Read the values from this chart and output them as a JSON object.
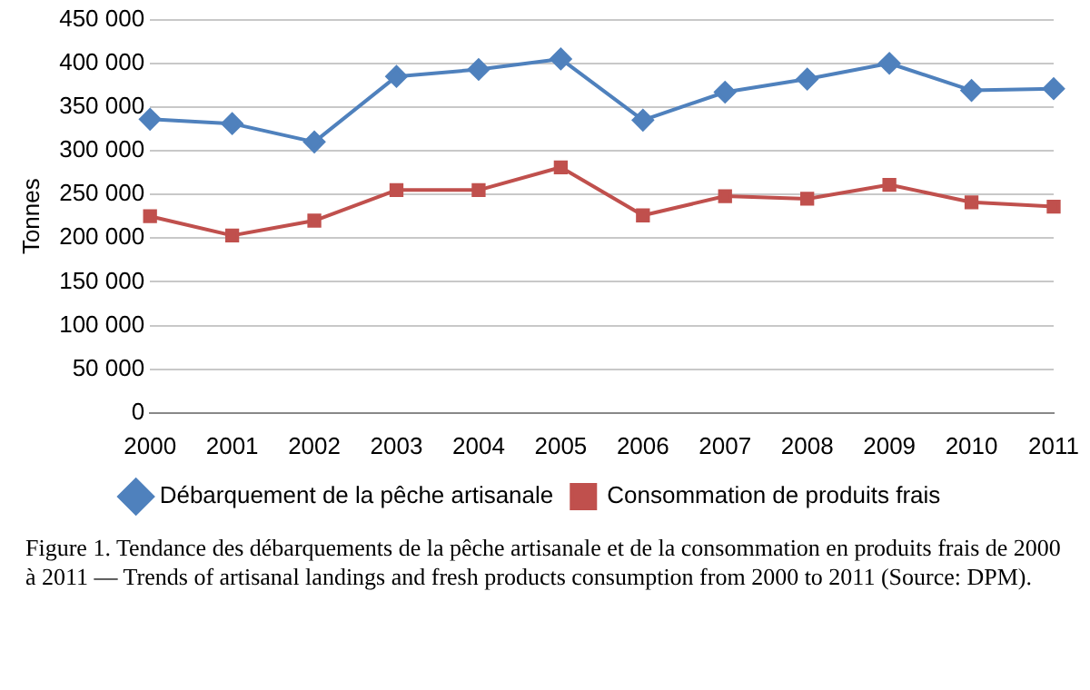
{
  "chart_data": {
    "type": "line",
    "ylabel": "Tonnes",
    "categories": [
      "2000",
      "2001",
      "2002",
      "2003",
      "2004",
      "2005",
      "2006",
      "2007",
      "2008",
      "2009",
      "2010",
      "2011"
    ],
    "series": [
      {
        "name": "Débarquement de la pêche artisanale",
        "color": "#4f81bd",
        "marker": "diamond",
        "values": [
          336000,
          331000,
          310000,
          385000,
          393000,
          405000,
          335000,
          367000,
          382000,
          400000,
          369000,
          371000
        ]
      },
      {
        "name": "Consommation de produits frais",
        "color": "#c0504d",
        "marker": "square",
        "values": [
          225000,
          203000,
          220000,
          255000,
          255000,
          281000,
          226000,
          248000,
          245000,
          261000,
          241000,
          236000
        ]
      }
    ],
    "ylim": [
      0,
      450000
    ],
    "yticks": [
      0,
      {
        "value": 50000,
        "label": "50 000"
      },
      {
        "value": 100000,
        "label": "100 000"
      },
      {
        "value": 150000,
        "label": "150 000"
      },
      {
        "value": 200000,
        "label": "200 000"
      },
      {
        "value": 250000,
        "label": "250 000"
      },
      {
        "value": 300000,
        "label": "300 000"
      },
      {
        "value": 350000,
        "label": "350 000"
      },
      {
        "value": 400000,
        "label": "400 000"
      },
      {
        "value": 450000,
        "label": "450 000"
      }
    ],
    "grid": "y",
    "legend": "bottom",
    "annotations": [
      "Figure 1. Tendance des débarquements de la pêche artisanale et de la consommation en produits frais de 2000 à 2011 — Trends of artisanal landings and fresh products consumption from 2000 to 2011 (Source: DPM)."
    ]
  }
}
